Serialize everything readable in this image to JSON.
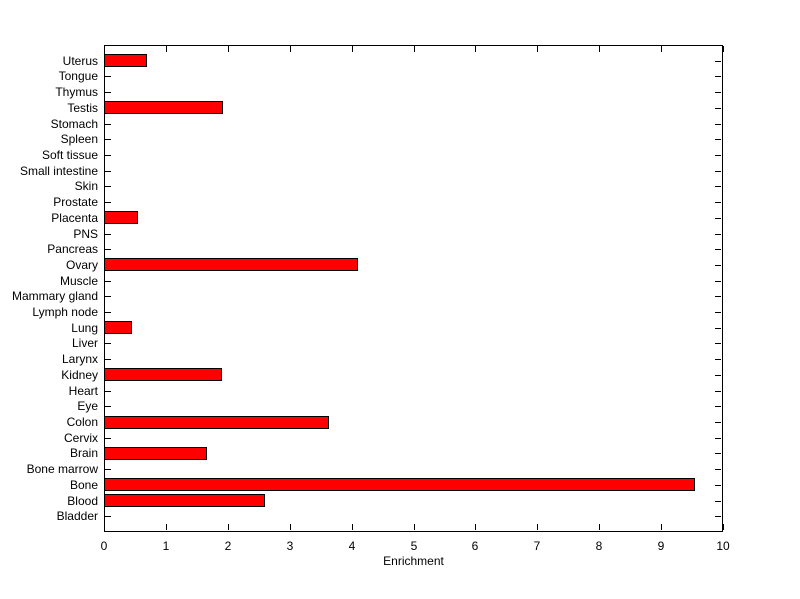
{
  "figure": {
    "background_color": "#ffffff",
    "axis_color": "#000000"
  },
  "chart_data": {
    "type": "bar",
    "orientation": "horizontal",
    "title": "",
    "xlabel": "Enrichment",
    "ylabel": "",
    "xlim": [
      0,
      10
    ],
    "xticks": [
      0,
      1,
      2,
      3,
      4,
      5,
      6,
      7,
      8,
      9,
      10
    ],
    "grid": false,
    "legend": false,
    "category_order": "top-to-bottom",
    "categories": [
      "Uterus",
      "Tongue",
      "Thymus",
      "Testis",
      "Stomach",
      "Spleen",
      "Soft tissue",
      "Small intestine",
      "Skin",
      "Prostate",
      "Placenta",
      "PNS",
      "Pancreas",
      "Ovary",
      "Muscle",
      "Mammary gland",
      "Lymph node",
      "Lung",
      "Liver",
      "Larynx",
      "Kidney",
      "Heart",
      "Eye",
      "Colon",
      "Cervix",
      "Brain",
      "Bone marrow",
      "Bone",
      "Blood",
      "Bladder"
    ],
    "values": [
      0.7,
      0,
      0,
      1.93,
      0,
      0,
      0,
      0,
      0,
      0,
      0.55,
      0,
      0,
      4.1,
      0,
      0,
      0,
      0.45,
      0,
      0,
      1.9,
      0,
      0,
      3.63,
      0,
      1.67,
      0,
      9.55,
      2.6,
      0
    ],
    "bar_color": "#ff0000",
    "bar_edge_color": "#000000"
  }
}
